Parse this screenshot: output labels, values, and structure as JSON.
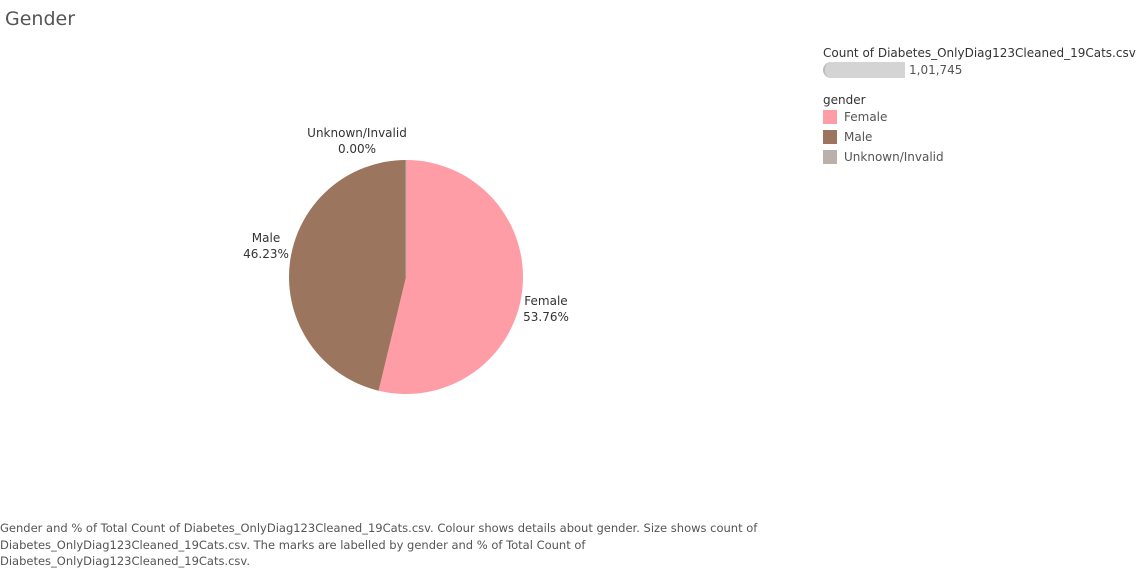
{
  "title": "Gender",
  "colors": {
    "Female": "#ff9da7",
    "Male": "#9c755f",
    "Unknown/Invalid": "#bab0ac"
  },
  "chart_data": {
    "type": "pie",
    "title": "Gender",
    "slices": [
      {
        "label": "Female",
        "percent": 53.76,
        "percent_text": "53.76%"
      },
      {
        "label": "Male",
        "percent": 46.23,
        "percent_text": "46.23%"
      },
      {
        "label": "Unknown/Invalid",
        "percent": 0.0,
        "percent_text": "0.00%"
      }
    ],
    "legend_placement": "top-right"
  },
  "size_legend": {
    "title": "Count of Diabetes_OnlyDiag123Cleaned_19Cats.csv",
    "value": "1,01,745"
  },
  "color_legend": {
    "title": "gender",
    "items": [
      {
        "label": "Female",
        "color": "#ff9da7"
      },
      {
        "label": "Male",
        "color": "#9c755f"
      },
      {
        "label": "Unknown/Invalid",
        "color": "#bab0ac"
      }
    ]
  },
  "caption": "Gender and % of Total Count of Diabetes_OnlyDiag123Cleaned_19Cats.csv.  Colour shows details about gender.  Size shows count of Diabetes_OnlyDiag123Cleaned_19Cats.csv.  The marks are labelled by gender and % of Total Count of Diabetes_OnlyDiag123Cleaned_19Cats.csv."
}
